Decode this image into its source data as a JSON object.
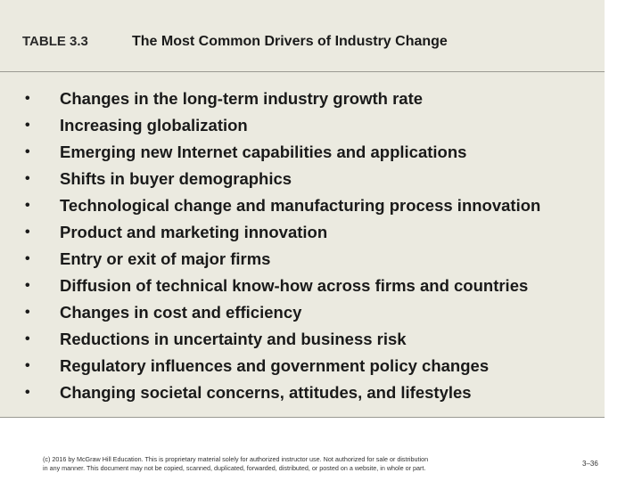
{
  "header": {
    "table_number": "TABLE 3.3",
    "title": "The Most Common Drivers of Industry Change"
  },
  "drivers": {
    "bullet": "•",
    "items": [
      "Changes in the long-term industry growth rate",
      "Increasing globalization",
      "Emerging new Internet capabilities and applications",
      "Shifts in buyer demographics",
      "Technological change and manufacturing process innovation",
      "Product and marketing innovation",
      "Entry or exit of major firms",
      "Diffusion of technical know-how across firms and countries",
      "Changes in cost and efficiency",
      "Reductions in uncertainty and business risk",
      "Regulatory influences and government policy changes",
      "Changing societal concerns, attitudes, and lifestyles"
    ]
  },
  "footer": {
    "copyright_line1": "(c) 2016 by McGraw Hill Education. This is proprietary material solely for authorized instructor use. Not authorized for sale or distribution",
    "copyright_line2": "in any manner. This document may not be copied, scanned, duplicated, forwarded, distributed, or posted on a website, in whole or part.",
    "page_number": "3–36"
  },
  "colors": {
    "panel_background": "#ebeae0",
    "divider": "#9a9a92",
    "text": "#1a1a1a"
  }
}
